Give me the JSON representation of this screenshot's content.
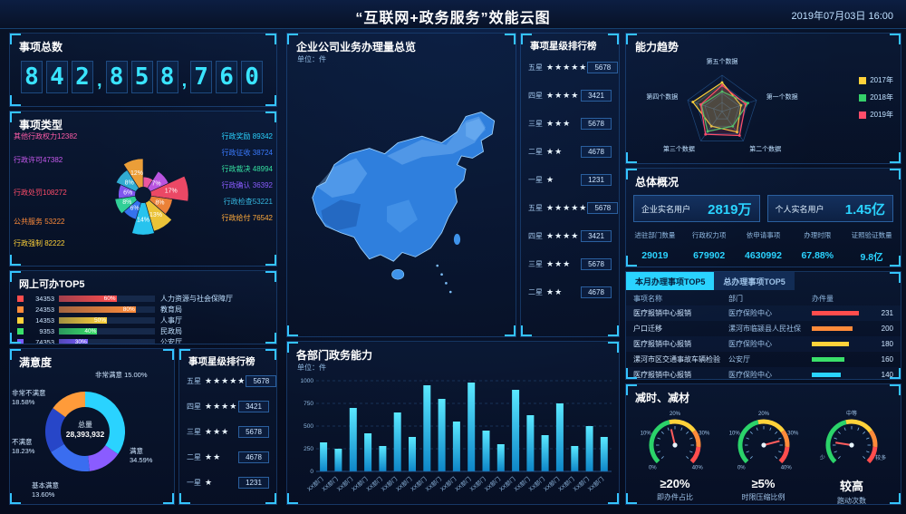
{
  "header": {
    "title": "“互联网+政务服务”效能云图",
    "datetime": "2019年07月03日  16:00"
  },
  "total_items": {
    "title": "事项总数",
    "value": "842,858,760"
  },
  "map_panel": {
    "title": "企业公司业务办理量总览",
    "unit": "单位：件"
  },
  "overview": {
    "title": "总体概况",
    "cards": [
      {
        "label": "企业实名用户",
        "value": "2819万"
      },
      {
        "label": "个人实名用户",
        "value": "1.45亿"
      }
    ],
    "stats": [
      {
        "label": "进驻部门数量",
        "value": "29019"
      },
      {
        "label": "行政权力项",
        "value": "679902"
      },
      {
        "label": "依申请事项",
        "value": "4630992"
      },
      {
        "label": "办理时限",
        "value": "67.88%"
      },
      {
        "label": "证照验证数量",
        "value": "9.8亿"
      }
    ]
  },
  "chart_data": [
    {
      "id": "item_types",
      "type": "pie",
      "title": "事项类型",
      "slices": [
        {
          "label": "其他行政权力12382",
          "value": 12382,
          "color": "#ff5ca8"
        },
        {
          "label": "行政许可47382",
          "value": 47382,
          "color": "#c95af0"
        },
        {
          "label": "行政处罚108272",
          "value": 108272,
          "color": "#ff4d6a"
        },
        {
          "label": "公共服务 53222",
          "value": 53222,
          "color": "#ff8b3a"
        },
        {
          "label": "行政强制 82222",
          "value": 82222,
          "color": "#ffd23a"
        },
        {
          "label": "行政奖励 89342",
          "value": 89342,
          "color": "#2ad3ff"
        },
        {
          "label": "行政征收 38724",
          "value": 38724,
          "color": "#3a7bff"
        },
        {
          "label": "行政裁决 48994",
          "value": 48994,
          "color": "#35e0a1"
        },
        {
          "label": "行政确认 36392",
          "value": 36392,
          "color": "#8a5cff"
        },
        {
          "label": "行政检查53221",
          "value": 53221,
          "color": "#35b8e0"
        },
        {
          "label": "行政给付 76542",
          "value": 76542,
          "color": "#ffaa3a"
        }
      ]
    },
    {
      "id": "online_top5",
      "type": "bar",
      "title": "网上可办TOP5",
      "rows": [
        {
          "value": "34353",
          "percent": 60,
          "label": "人力资源与社会保障厅",
          "color": "#ff4d4d"
        },
        {
          "value": "24353",
          "percent": 80,
          "label": "教育局",
          "color": "#ff8b3a"
        },
        {
          "value": "14353",
          "percent": 50,
          "label": "人事厅",
          "color": "#ffd23a"
        },
        {
          "value": "9353",
          "percent": 40,
          "label": "民政局",
          "color": "#3ae06a"
        },
        {
          "value": "74353",
          "percent": 30,
          "label": "公安厅",
          "color": "#7a5cff"
        }
      ]
    },
    {
      "id": "satisfaction",
      "type": "pie",
      "title": "满意度",
      "center_label": "总量",
      "center_value": "28,393,932",
      "slices": [
        {
          "label": "满意",
          "pct": 34.59,
          "display": "满意 34.59%",
          "color": "#2ad3ff"
        },
        {
          "label": "基本满意",
          "pct": 13.6,
          "display": "基本满意 13.60%",
          "color": "#8a5cff"
        },
        {
          "label": "不满意",
          "pct": 18.23,
          "display": "不满意 18.23%",
          "color": "#3a6df0"
        },
        {
          "label": "非常不满意",
          "pct": 18.58,
          "display": "非常不满意 18.58%",
          "color": "#2746c8"
        },
        {
          "label": "非常满意",
          "pct": 15.0,
          "display": "非常满意 15.00%",
          "color": "#ff9b3a"
        }
      ]
    },
    {
      "id": "star_rank_side",
      "type": "table",
      "title": "事项星级排行榜",
      "rows": [
        {
          "tier": "五星",
          "stars": 5,
          "value": "5678"
        },
        {
          "tier": "四星",
          "stars": 4,
          "value": "3421"
        },
        {
          "tier": "三星",
          "stars": 3,
          "value": "5678"
        },
        {
          "tier": "二星",
          "stars": 2,
          "value": "4678"
        },
        {
          "tier": "一星",
          "stars": 1,
          "value": "1231"
        },
        {
          "tier": "五星",
          "stars": 5,
          "value": "5678"
        },
        {
          "tier": "四星",
          "stars": 4,
          "value": "3421"
        },
        {
          "tier": "三星",
          "stars": 3,
          "value": "5678"
        },
        {
          "tier": "二星",
          "stars": 2,
          "value": "4678"
        }
      ]
    },
    {
      "id": "star_rank_bottom",
      "type": "table",
      "title": "事项星级排行榜",
      "rows": [
        {
          "tier": "五星",
          "stars": 5,
          "value": "5678"
        },
        {
          "tier": "四星",
          "stars": 4,
          "value": "3421"
        },
        {
          "tier": "三星",
          "stars": 3,
          "value": "5678"
        },
        {
          "tier": "二星",
          "stars": 2,
          "value": "4678"
        },
        {
          "tier": "一星",
          "stars": 1,
          "value": "1231"
        }
      ]
    },
    {
      "id": "dept_capability",
      "type": "bar",
      "title": "各部门政务能力",
      "unit": "单位：件",
      "ylim": [
        0,
        1000
      ],
      "yticks": [
        0,
        250,
        500,
        750,
        1000
      ],
      "categories": [
        "XX部门",
        "XX部门",
        "XX部门",
        "XX部门",
        "XX部门",
        "XX部门",
        "XX部门",
        "XX部门",
        "XX部门",
        "XX部门",
        "XX部门",
        "XX部门",
        "XX部门",
        "XX部门",
        "XX部门",
        "XX部门",
        "XX部门",
        "XX部门",
        "XX部门",
        "XX部门"
      ],
      "values": [
        320,
        250,
        700,
        420,
        280,
        650,
        380,
        950,
        800,
        550,
        980,
        450,
        300,
        900,
        620,
        400,
        750,
        280,
        500,
        380
      ]
    },
    {
      "id": "capability_radar",
      "type": "radar",
      "title": "能力趋势",
      "axes": [
        "第五个数据",
        "第一个数据",
        "第二个数据",
        "第三个数据",
        "第四个数据"
      ],
      "legend": [
        {
          "label": "2017年",
          "color": "#ffd23a"
        },
        {
          "label": "2018年",
          "color": "#35d06a"
        },
        {
          "label": "2019年",
          "color": "#ff4d6a"
        }
      ],
      "series": [
        {
          "name": "2017年",
          "color": "#ffd23a",
          "values": [
            0.8,
            0.55,
            0.7,
            0.5,
            0.85
          ]
        },
        {
          "name": "2018年",
          "color": "#35d06a",
          "values": [
            0.55,
            0.75,
            0.5,
            0.68,
            0.6
          ]
        },
        {
          "name": "2019年",
          "color": "#ff4d6a",
          "values": [
            0.72,
            0.68,
            0.82,
            0.78,
            0.62
          ]
        }
      ]
    },
    {
      "id": "monthly_top5",
      "type": "table",
      "tabs": [
        {
          "label": "本月办理事项TOP5",
          "active": true
        },
        {
          "label": "总办理事项TOP5",
          "active": false
        }
      ],
      "columns": [
        "事项名称",
        "部门",
        "办件量"
      ],
      "rows": [
        {
          "name": "医疗报销中心报销",
          "dept": "医疗保险中心",
          "value": 231,
          "color": "#ff4d4d"
        },
        {
          "name": "户口迁移",
          "dept": "漯河市临颍县人民社保",
          "value": 200,
          "color": "#ff8b3a"
        },
        {
          "name": "医疗报销中心报销",
          "dept": "医疗保险中心",
          "value": 180,
          "color": "#ffd23a"
        },
        {
          "name": "漯河市区交通事故车辆检验",
          "dept": "公安厅",
          "value": 160,
          "color": "#3ae06a"
        },
        {
          "name": "医疗报销中心报销",
          "dept": "医疗保险中心",
          "value": 140,
          "color": "#2ad3ff"
        }
      ]
    },
    {
      "id": "gauges",
      "type": "gauge",
      "title": "减时、减材",
      "items": [
        {
          "ticks": [
            "0%",
            "10%",
            "20%",
            "30%",
            "40%"
          ],
          "needle": 0.45,
          "value": "≥20%",
          "caption": "即办件占比"
        },
        {
          "ticks": [
            "0%",
            "10%",
            "20%",
            "30%",
            "40%"
          ],
          "needle": 0.78,
          "value": "≥5%",
          "caption": "时限压缩比例"
        },
        {
          "ticks": [
            "少",
            "中等",
            "较多"
          ],
          "needle": 0.2,
          "value": "较高",
          "caption": "跑动次数"
        }
      ]
    }
  ]
}
